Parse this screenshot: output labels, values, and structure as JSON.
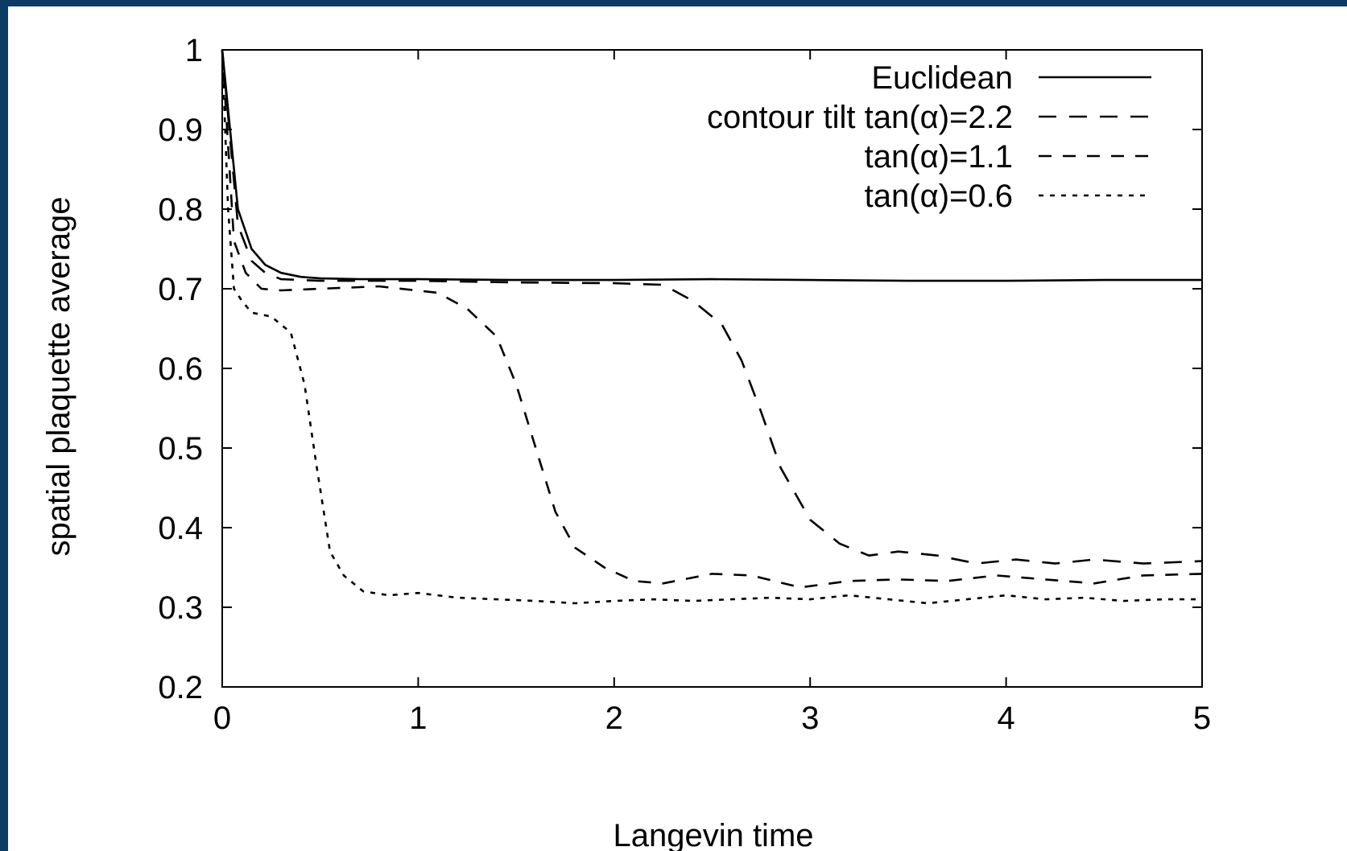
{
  "chart_data": {
    "type": "line",
    "xlabel": "Langevin time",
    "ylabel": "spatial plaquette average",
    "xlim": [
      0,
      5
    ],
    "ylim": [
      0.2,
      1
    ],
    "xticks": [
      "0",
      "1",
      "2",
      "3",
      "4",
      "5"
    ],
    "yticks": [
      "0.2",
      "0.3",
      "0.4",
      "0.5",
      "0.6",
      "0.7",
      "0.8",
      "0.9",
      "1"
    ],
    "grid": false,
    "legend_position": "top-right",
    "series": [
      {
        "name": "Euclidean",
        "dash": "solid",
        "x": [
          0,
          0.08,
          0.15,
          0.22,
          0.3,
          0.4,
          0.5,
          0.7,
          1.0,
          1.5,
          2.0,
          2.5,
          3.0,
          3.5,
          4.0,
          4.5,
          5.0
        ],
        "y": [
          1.0,
          0.8,
          0.75,
          0.73,
          0.72,
          0.715,
          0.713,
          0.712,
          0.712,
          0.711,
          0.711,
          0.712,
          0.711,
          0.71,
          0.71,
          0.711,
          0.711
        ]
      },
      {
        "name": "contour tilt tan(α)=2.2",
        "dash": "long",
        "x": [
          0,
          0.08,
          0.15,
          0.22,
          0.3,
          0.5,
          1.0,
          1.5,
          2.0,
          2.25,
          2.4,
          2.55,
          2.65,
          2.75,
          2.85,
          3.0,
          3.15,
          3.3,
          3.45,
          3.65,
          3.85,
          4.05,
          4.25,
          4.45,
          4.7,
          5.0
        ],
        "y": [
          1.0,
          0.78,
          0.735,
          0.72,
          0.712,
          0.71,
          0.71,
          0.708,
          0.707,
          0.705,
          0.685,
          0.655,
          0.61,
          0.545,
          0.475,
          0.41,
          0.38,
          0.365,
          0.37,
          0.365,
          0.355,
          0.36,
          0.355,
          0.36,
          0.355,
          0.358
        ]
      },
      {
        "name": "tan(α)=1.1",
        "dash": "medium",
        "x": [
          0,
          0.06,
          0.12,
          0.2,
          0.3,
          0.5,
          0.8,
          1.1,
          1.25,
          1.4,
          1.5,
          1.6,
          1.7,
          1.8,
          1.95,
          2.1,
          2.25,
          2.5,
          2.7,
          2.95,
          3.2,
          3.45,
          3.7,
          3.95,
          4.2,
          4.45,
          4.7,
          5.0
        ],
        "y": [
          1.0,
          0.76,
          0.72,
          0.7,
          0.698,
          0.7,
          0.703,
          0.695,
          0.675,
          0.64,
          0.58,
          0.5,
          0.42,
          0.375,
          0.35,
          0.333,
          0.33,
          0.342,
          0.34,
          0.325,
          0.333,
          0.335,
          0.333,
          0.34,
          0.335,
          0.33,
          0.34,
          0.342
        ]
      },
      {
        "name": "tan(α)=0.6",
        "dash": "short",
        "x": [
          0,
          0.03,
          0.06,
          0.1,
          0.15,
          0.25,
          0.35,
          0.42,
          0.48,
          0.55,
          0.62,
          0.72,
          0.85,
          1.0,
          1.2,
          1.4,
          1.6,
          1.8,
          2.0,
          2.2,
          2.4,
          2.6,
          2.8,
          3.0,
          3.2,
          3.4,
          3.6,
          3.8,
          4.0,
          4.2,
          4.4,
          4.6,
          4.8,
          5.0
        ],
        "y": [
          1.0,
          0.8,
          0.7,
          0.685,
          0.67,
          0.665,
          0.645,
          0.58,
          0.48,
          0.37,
          0.34,
          0.32,
          0.315,
          0.318,
          0.312,
          0.31,
          0.308,
          0.305,
          0.308,
          0.31,
          0.308,
          0.31,
          0.312,
          0.31,
          0.315,
          0.31,
          0.305,
          0.31,
          0.315,
          0.31,
          0.312,
          0.308,
          0.31,
          0.31
        ]
      }
    ]
  }
}
